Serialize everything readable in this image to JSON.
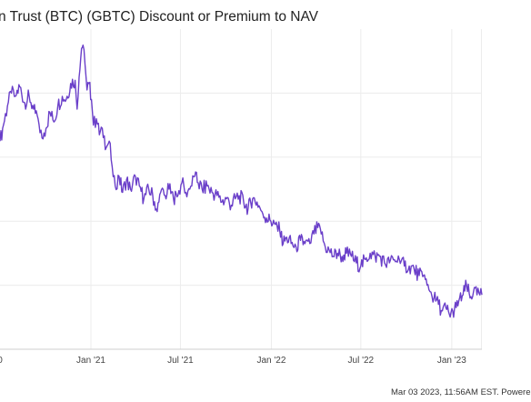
{
  "chart_data": {
    "type": "line",
    "title": "n Trust (BTC) (GBTC) Discount or Premium to NAV",
    "xlabel": "",
    "ylabel": "",
    "x_ticks": [
      "0",
      "Jan '21",
      "Jul '21",
      "Jan '22",
      "Jul '22",
      "Jan '23"
    ],
    "tick_dates": [
      "2020-07-01",
      "2021-01-01",
      "2021-07-01",
      "2022-01-01",
      "2022-07-01",
      "2023-01-01"
    ],
    "xlim": [
      "2020-07-01",
      "2023-03-03"
    ],
    "ylim": [
      -60,
      40
    ],
    "y_gridlines": [
      20,
      0,
      -20,
      -40
    ],
    "y_tick_labels_visible": false,
    "grid": true,
    "legend": "none",
    "series": [
      {
        "color": "#6a3fc9",
        "points": [
          [
            "2020-07-01",
            5
          ],
          [
            "2020-07-08",
            10
          ],
          [
            "2020-07-16",
            16
          ],
          [
            "2020-07-24",
            20
          ],
          [
            "2020-08-01",
            19
          ],
          [
            "2020-08-10",
            22
          ],
          [
            "2020-08-20",
            17
          ],
          [
            "2020-08-29",
            19
          ],
          [
            "2020-09-07",
            15
          ],
          [
            "2020-09-16",
            12
          ],
          [
            "2020-09-24",
            6
          ],
          [
            "2020-10-02",
            9
          ],
          [
            "2020-10-10",
            14
          ],
          [
            "2020-10-18",
            11
          ],
          [
            "2020-10-26",
            16
          ],
          [
            "2020-11-04",
            19
          ],
          [
            "2020-11-12",
            18
          ],
          [
            "2020-11-21",
            23
          ],
          [
            "2020-11-30",
            24
          ],
          [
            "2020-12-04",
            15
          ],
          [
            "2020-12-08",
            25
          ],
          [
            "2020-12-13",
            34
          ],
          [
            "2020-12-16",
            35
          ],
          [
            "2020-12-20",
            29
          ],
          [
            "2020-12-24",
            21
          ],
          [
            "2020-12-28",
            23
          ],
          [
            "2021-01-02",
            18
          ],
          [
            "2021-01-06",
            10
          ],
          [
            "2021-01-12",
            12
          ],
          [
            "2021-01-18",
            7
          ],
          [
            "2021-01-24",
            9
          ],
          [
            "2021-02-01",
            3
          ],
          [
            "2021-02-07",
            5
          ],
          [
            "2021-02-13",
            -3
          ],
          [
            "2021-02-19",
            -9
          ],
          [
            "2021-02-27",
            -6
          ],
          [
            "2021-03-06",
            -11
          ],
          [
            "2021-03-14",
            -7
          ],
          [
            "2021-03-22",
            -10
          ],
          [
            "2021-04-01",
            -6
          ],
          [
            "2021-04-09",
            -9
          ],
          [
            "2021-04-18",
            -13
          ],
          [
            "2021-04-28",
            -10
          ],
          [
            "2021-05-06",
            -12
          ],
          [
            "2021-05-15",
            -17
          ],
          [
            "2021-05-22",
            -11
          ],
          [
            "2021-05-31",
            -12
          ],
          [
            "2021-06-08",
            -10
          ],
          [
            "2021-06-17",
            -13
          ],
          [
            "2021-06-26",
            -12
          ],
          [
            "2021-07-04",
            -8
          ],
          [
            "2021-07-12",
            -11
          ],
          [
            "2021-07-20",
            -10
          ],
          [
            "2021-07-30",
            -6
          ],
          [
            "2021-08-06",
            -8
          ],
          [
            "2021-08-14",
            -10
          ],
          [
            "2021-08-24",
            -9
          ],
          [
            "2021-09-03",
            -11
          ],
          [
            "2021-09-13",
            -12
          ],
          [
            "2021-09-23",
            -14
          ],
          [
            "2021-10-02",
            -13
          ],
          [
            "2021-10-12",
            -15
          ],
          [
            "2021-10-20",
            -13
          ],
          [
            "2021-10-28",
            -12
          ],
          [
            "2021-11-06",
            -14
          ],
          [
            "2021-11-15",
            -16
          ],
          [
            "2021-11-24",
            -13
          ],
          [
            "2021-12-03",
            -14
          ],
          [
            "2021-12-13",
            -17
          ],
          [
            "2021-12-22",
            -19
          ],
          [
            "2021-12-31",
            -20
          ],
          [
            "2022-01-09",
            -21
          ],
          [
            "2022-01-18",
            -23
          ],
          [
            "2022-01-25",
            -27
          ],
          [
            "2022-02-01",
            -25
          ],
          [
            "2022-02-10",
            -27
          ],
          [
            "2022-02-20",
            -28
          ],
          [
            "2022-03-01",
            -26
          ],
          [
            "2022-03-10",
            -27
          ],
          [
            "2022-03-20",
            -27
          ],
          [
            "2022-03-28",
            -24
          ],
          [
            "2022-04-05",
            -22
          ],
          [
            "2022-04-12",
            -24
          ],
          [
            "2022-04-20",
            -28
          ],
          [
            "2022-04-28",
            -29
          ],
          [
            "2022-05-06",
            -31
          ],
          [
            "2022-05-15",
            -30
          ],
          [
            "2022-05-24",
            -31
          ],
          [
            "2022-06-02",
            -30
          ],
          [
            "2022-06-12",
            -31
          ],
          [
            "2022-06-22",
            -33
          ],
          [
            "2022-07-01",
            -34
          ],
          [
            "2022-07-10",
            -32
          ],
          [
            "2022-07-20",
            -30
          ],
          [
            "2022-07-30",
            -31
          ],
          [
            "2022-08-08",
            -31
          ],
          [
            "2022-08-18",
            -33
          ],
          [
            "2022-08-28",
            -33
          ],
          [
            "2022-09-07",
            -32
          ],
          [
            "2022-09-17",
            -32
          ],
          [
            "2022-09-27",
            -34
          ],
          [
            "2022-10-07",
            -34
          ],
          [
            "2022-10-17",
            -35
          ],
          [
            "2022-10-27",
            -37
          ],
          [
            "2022-11-05",
            -37
          ],
          [
            "2022-11-12",
            -40
          ],
          [
            "2022-11-18",
            -42
          ],
          [
            "2022-11-26",
            -44
          ],
          [
            "2022-12-05",
            -46
          ],
          [
            "2022-12-13",
            -48
          ],
          [
            "2022-12-20",
            -47
          ],
          [
            "2022-12-27",
            -49
          ],
          [
            "2023-01-03",
            -48
          ],
          [
            "2023-01-10",
            -47
          ],
          [
            "2023-01-17",
            -44
          ],
          [
            "2023-01-24",
            -43
          ],
          [
            "2023-01-31",
            -40
          ],
          [
            "2023-02-07",
            -44
          ],
          [
            "2023-02-14",
            -42
          ],
          [
            "2023-02-21",
            -43
          ],
          [
            "2023-03-03",
            -43
          ]
        ]
      }
    ]
  },
  "footer": {
    "text": "Mar 03 2023, 11:56AM EST. Powere"
  }
}
